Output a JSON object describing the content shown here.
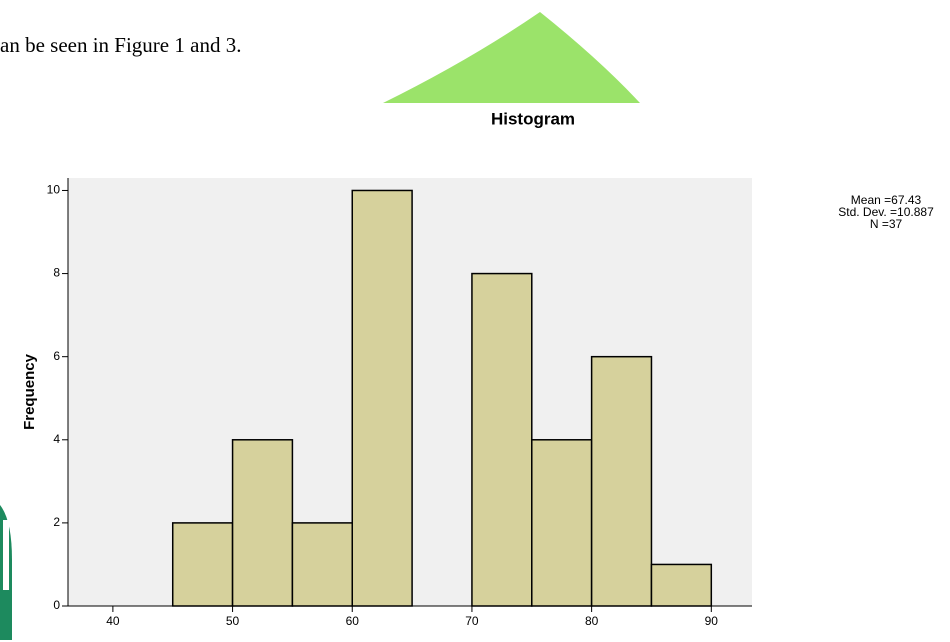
{
  "document": {
    "text": "an be seen in Figure 1 and 3."
  },
  "chart_data": {
    "type": "histogram",
    "title": "Histogram",
    "y_label": "Frequency",
    "bins": [
      45,
      50,
      55,
      60,
      65,
      70,
      75,
      80,
      85,
      90
    ],
    "values": [
      2,
      4,
      2,
      10,
      0,
      8,
      4,
      6,
      1
    ],
    "color": "#d6d19c",
    "xlim": [
      36.25,
      93.4
    ],
    "xticks": [
      40,
      50,
      60,
      70,
      80,
      90
    ],
    "ylim": [
      0,
      10.3
    ],
    "yticks": [
      0,
      2,
      4,
      6,
      8,
      10
    ],
    "annotations": [
      "Mean =67.43",
      "Std. Dev. =10.887",
      "N =37"
    ]
  }
}
